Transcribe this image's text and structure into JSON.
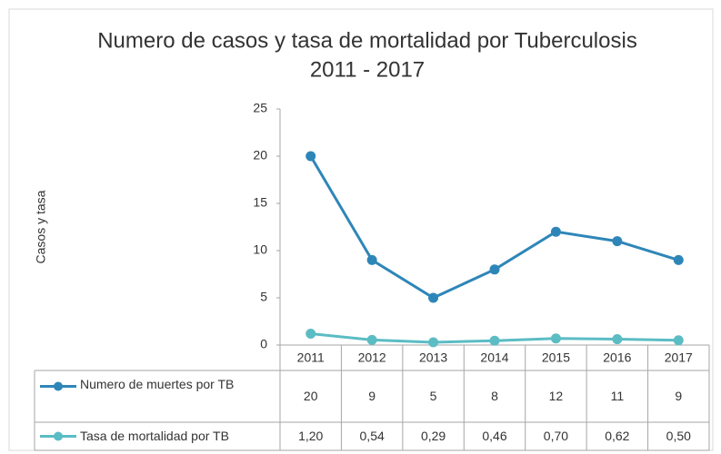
{
  "chart_data": {
    "type": "line",
    "title": [
      "Numero de casos y tasa de mortalidad por Tuberculosis",
      "2011 - 2017"
    ],
    "y_label": "Casos y tasa",
    "categories": [
      "2011",
      "2012",
      "2013",
      "2014",
      "2015",
      "2016",
      "2017"
    ],
    "series": [
      {
        "name": "Numero de muertes por TB",
        "color": "#2e86b8",
        "values": [
          20,
          9,
          5,
          8,
          12,
          11,
          9
        ]
      },
      {
        "name": "Tasa de mortalidad por TB",
        "color": "#5bbcc4",
        "values": [
          1.2,
          0.54,
          0.29,
          0.46,
          0.7,
          0.62,
          0.5
        ],
        "value_labels": [
          "1,20",
          "0,54",
          "0,29",
          "0,46",
          "0,70",
          "0,62",
          "0,50"
        ]
      }
    ],
    "ylim": [
      0,
      25
    ],
    "yticks": [
      0,
      5,
      10,
      15,
      20,
      25
    ],
    "grid": false,
    "data_table": true
  }
}
